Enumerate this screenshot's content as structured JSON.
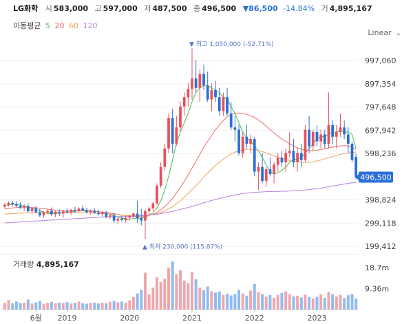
{
  "header": {
    "name": "LG화학",
    "open_label": "시",
    "open": "583,000",
    "high_label": "고",
    "high": "597,000",
    "low_label": "저",
    "low": "487,500",
    "close_label": "종",
    "close": "496,500",
    "change": "▼86,500",
    "change_pct": "-14.84%",
    "volume_label": "거",
    "volume": "4,895,167"
  },
  "ma_legend": {
    "label": "이동평균",
    "periods": [
      "5",
      "20",
      "60",
      "120"
    ]
  },
  "scale_select": {
    "value": "Linear"
  },
  "colors": {
    "up": "#e8505b",
    "down": "#2a6fd6",
    "ma5": "#4cbb4c",
    "ma20": "#ee6a6a",
    "ma60": "#f2a25a",
    "ma120": "#b77fd6",
    "vol_up": "#f0a6ac",
    "vol_down": "#8fbbf0",
    "grid": "#eeeeee",
    "price_tag": "#2a6fd6"
  },
  "chart_data": {
    "type": "candlestick",
    "title": "",
    "ylim": [
      170000,
      1080000
    ],
    "y_ticks": [
      997060,
      897354,
      797648,
      697942,
      598236,
      398824,
      299118,
      199412
    ],
    "y_tick_labels": [
      "997,060",
      "897,354",
      "797,648",
      "697,942",
      "598,236",
      "398,824",
      "299,118",
      "199,412"
    ],
    "current_price": 496500,
    "current_price_label": "496,500",
    "x_labels": [
      "6월",
      "2019",
      "2020",
      "2021",
      "2022",
      "2023"
    ],
    "x_label_index": [
      8,
      16,
      32,
      48,
      64,
      80
    ],
    "n_periods": 91,
    "candles": [
      [
        370000,
        385000,
        362000,
        378000
      ],
      [
        378000,
        392000,
        370000,
        386000
      ],
      [
        386000,
        395000,
        374000,
        380000
      ],
      [
        380000,
        392000,
        368000,
        374000
      ],
      [
        374000,
        388000,
        360000,
        366000
      ],
      [
        366000,
        380000,
        352000,
        372000
      ],
      [
        372000,
        384000,
        345000,
        350000
      ],
      [
        350000,
        365000,
        338000,
        362000
      ],
      [
        362000,
        372000,
        340000,
        346000
      ],
      [
        346000,
        360000,
        325000,
        332000
      ],
      [
        332000,
        350000,
        322000,
        345000
      ],
      [
        345000,
        360000,
        338000,
        352000
      ],
      [
        352000,
        366000,
        330000,
        338000
      ],
      [
        338000,
        352000,
        325000,
        347000
      ],
      [
        347000,
        358000,
        330000,
        340000
      ],
      [
        340000,
        356000,
        322000,
        350000
      ],
      [
        350000,
        362000,
        340000,
        345000
      ],
      [
        345000,
        360000,
        335000,
        356000
      ],
      [
        356000,
        368000,
        342000,
        350000
      ],
      [
        350000,
        368000,
        346000,
        362000
      ],
      [
        362000,
        376000,
        350000,
        354000
      ],
      [
        354000,
        365000,
        340000,
        346000
      ],
      [
        346000,
        358000,
        336000,
        352000
      ],
      [
        352000,
        362000,
        338000,
        344000
      ],
      [
        344000,
        356000,
        332000,
        338000
      ],
      [
        338000,
        350000,
        326000,
        344000
      ],
      [
        344000,
        352000,
        320000,
        326000
      ],
      [
        326000,
        340000,
        316000,
        332000
      ],
      [
        332000,
        342000,
        300000,
        310000
      ],
      [
        310000,
        325000,
        296000,
        318000
      ],
      [
        318000,
        332000,
        305000,
        312000
      ],
      [
        312000,
        328000,
        302000,
        322000
      ],
      [
        322000,
        336000,
        310000,
        328000
      ],
      [
        328000,
        345000,
        318000,
        340000
      ],
      [
        340000,
        395000,
        300000,
        320000
      ],
      [
        320000,
        360000,
        290000,
        310000
      ],
      [
        310000,
        360000,
        230000,
        350000
      ],
      [
        350000,
        372000,
        332000,
        362000
      ],
      [
        362000,
        390000,
        350000,
        384000
      ],
      [
        384000,
        470000,
        376000,
        460000
      ],
      [
        460000,
        560000,
        450000,
        540000
      ],
      [
        540000,
        640000,
        525000,
        620000
      ],
      [
        620000,
        770000,
        600000,
        750000
      ],
      [
        750000,
        790000,
        600000,
        640000
      ],
      [
        640000,
        760000,
        630000,
        710000
      ],
      [
        710000,
        820000,
        690000,
        800000
      ],
      [
        800000,
        860000,
        760000,
        840000
      ],
      [
        840000,
        900000,
        800000,
        875000
      ],
      [
        875000,
        1050000,
        830000,
        920000
      ],
      [
        920000,
        1000000,
        860000,
        880000
      ],
      [
        880000,
        960000,
        820000,
        940000
      ],
      [
        940000,
        980000,
        870000,
        890000
      ],
      [
        890000,
        950000,
        820000,
        830000
      ],
      [
        830000,
        900000,
        780000,
        870000
      ],
      [
        870000,
        910000,
        820000,
        840000
      ],
      [
        840000,
        880000,
        760000,
        780000
      ],
      [
        780000,
        860000,
        760000,
        840000
      ],
      [
        840000,
        880000,
        760000,
        770000
      ],
      [
        770000,
        820000,
        700000,
        710000
      ],
      [
        710000,
        760000,
        650000,
        700000
      ],
      [
        700000,
        720000,
        590000,
        600000
      ],
      [
        600000,
        690000,
        580000,
        670000
      ],
      [
        670000,
        720000,
        620000,
        640000
      ],
      [
        640000,
        680000,
        600000,
        660000
      ],
      [
        660000,
        670000,
        500000,
        520000
      ],
      [
        520000,
        560000,
        440000,
        540000
      ],
      [
        540000,
        600000,
        470000,
        480000
      ],
      [
        480000,
        540000,
        455000,
        530000
      ],
      [
        530000,
        580000,
        500000,
        510000
      ],
      [
        510000,
        560000,
        470000,
        550000
      ],
      [
        550000,
        600000,
        520000,
        580000
      ],
      [
        580000,
        610000,
        540000,
        560000
      ],
      [
        560000,
        620000,
        520000,
        600000
      ],
      [
        600000,
        690000,
        580000,
        610000
      ],
      [
        610000,
        660000,
        540000,
        560000
      ],
      [
        560000,
        620000,
        520000,
        600000
      ],
      [
        600000,
        640000,
        540000,
        570000
      ],
      [
        570000,
        720000,
        560000,
        700000
      ],
      [
        700000,
        760000,
        600000,
        630000
      ],
      [
        630000,
        700000,
        610000,
        690000
      ],
      [
        690000,
        720000,
        630000,
        650000
      ],
      [
        650000,
        700000,
        620000,
        680000
      ],
      [
        680000,
        700000,
        620000,
        640000
      ],
      [
        640000,
        860000,
        620000,
        720000
      ],
      [
        720000,
        740000,
        640000,
        670000
      ],
      [
        670000,
        720000,
        620000,
        690000
      ],
      [
        690000,
        770000,
        670000,
        710000
      ],
      [
        710000,
        740000,
        660000,
        680000
      ],
      [
        680000,
        710000,
        600000,
        640000
      ],
      [
        640000,
        650000,
        560000,
        570000
      ],
      [
        583000,
        597000,
        487500,
        496500
      ]
    ],
    "annotations": {
      "high": {
        "label": "최고",
        "value": "1,050,000",
        "pct": "(-52.71%)",
        "index": 48
      },
      "low": {
        "label": "최저",
        "value": "230,000",
        "pct": "(115.87%)",
        "index": 36
      }
    },
    "series": [
      {
        "name": "5",
        "values": [
          372000,
          378000,
          381000,
          380000,
          377000,
          373000,
          368000,
          364000,
          360000,
          352000,
          346000,
          341000,
          338000,
          340000,
          343000,
          342000,
          344000,
          347000,
          350000,
          353000,
          354000,
          354000,
          352000,
          350000,
          349000,
          345000,
          341000,
          337000,
          331000,
          325000,
          320000,
          318000,
          315000,
          320000,
          320000,
          320000,
          325000,
          333000,
          343000,
          364000,
          394000,
          440000,
          500000,
          570000,
          640000,
          690000,
          730000,
          770000,
          820000,
          860000,
          880000,
          890000,
          890000,
          880000,
          870000,
          860000,
          840000,
          830000,
          800000,
          770000,
          730000,
          690000,
          665000,
          650000,
          630000,
          610000,
          580000,
          550000,
          520000,
          510000,
          515000,
          525000,
          540000,
          560000,
          570000,
          575000,
          580000,
          600000,
          620000,
          640000,
          660000,
          670000,
          672000,
          680000,
          690000,
          690000,
          695000,
          690000,
          690000,
          680000,
          620000
        ]
      },
      {
        "name": "20",
        "values": [
          360000,
          362000,
          364000,
          366000,
          367000,
          368000,
          367000,
          366000,
          365000,
          363000,
          361000,
          359000,
          357000,
          355000,
          354000,
          353000,
          352000,
          352000,
          352000,
          352000,
          352000,
          351000,
          350000,
          349000,
          348000,
          346000,
          344000,
          342000,
          339000,
          336000,
          333000,
          331000,
          329000,
          328000,
          327000,
          326000,
          328000,
          332000,
          337000,
          345000,
          356000,
          370000,
          386000,
          405000,
          428000,
          453000,
          478000,
          505000,
          535000,
          565000,
          595000,
          625000,
          650000,
          675000,
          700000,
          720000,
          740000,
          755000,
          765000,
          770000,
          772000,
          770000,
          766000,
          760000,
          752000,
          742000,
          730000,
          715000,
          700000,
          686000,
          672000,
          660000,
          650000,
          640000,
          630000,
          622000,
          616000,
          612000,
          610000,
          610000,
          612000,
          615000,
          618000,
          622000,
          625000,
          628000,
          630000,
          632000,
          630000,
          625000,
          615000
        ]
      },
      {
        "name": "60",
        "values": [
          338000,
          339000,
          340000,
          341000,
          342000,
          342000,
          343000,
          343000,
          344000,
          344000,
          344000,
          344000,
          344000,
          344000,
          344000,
          344000,
          344000,
          344000,
          344000,
          344000,
          344000,
          343000,
          343000,
          342000,
          341000,
          340000,
          339000,
          338000,
          336000,
          335000,
          333000,
          332000,
          331000,
          330000,
          330000,
          330000,
          331000,
          333000,
          336000,
          340000,
          345000,
          352000,
          360000,
          370000,
          382000,
          395000,
          410000,
          426000,
          443000,
          460000,
          478000,
          496000,
          514000,
          530000,
          546000,
          560000,
          574000,
          586000,
          596000,
          604000,
          610000,
          614000,
          616000,
          616000,
          614000,
          611000,
          606000,
          600000,
          594000,
          588000,
          582000,
          577000,
          572000,
          568000,
          565000,
          562000,
          560000,
          560000,
          560000,
          562000,
          566000,
          570000,
          575000,
          580000,
          585000,
          590000,
          594000,
          598000,
          600000,
          602000,
          604000
        ]
      },
      {
        "name": "120",
        "values": [
          300000,
          301000,
          302000,
          303000,
          304000,
          305000,
          306000,
          307000,
          308000,
          309000,
          310000,
          311000,
          312000,
          313000,
          314000,
          315000,
          316000,
          317000,
          318000,
          319000,
          320000,
          321000,
          322000,
          323000,
          324000,
          325000,
          325000,
          326000,
          326000,
          327000,
          327000,
          328000,
          328000,
          329000,
          330000,
          331000,
          332000,
          333000,
          335000,
          337000,
          340000,
          343000,
          346000,
          350000,
          354000,
          358000,
          362000,
          366000,
          371000,
          376000,
          381000,
          386000,
          391000,
          396000,
          401000,
          405000,
          409000,
          413000,
          417000,
          420000,
          423000,
          426000,
          428000,
          430000,
          431000,
          432000,
          433000,
          434000,
          434000,
          435000,
          435000,
          436000,
          436000,
          437000,
          438000,
          439000,
          440000,
          441000,
          443000,
          445000,
          447000,
          449000,
          452000,
          455000,
          458000,
          461000,
          464000,
          467000,
          470000,
          472000,
          474000
        ]
      }
    ],
    "volume": {
      "label": "거래량",
      "last_value": "4,895,167",
      "ylim": [
        0,
        24000000
      ],
      "ticks": [
        18700000,
        9360000
      ],
      "tick_labels": [
        "18.7m",
        "9.36m"
      ],
      "values": [
        3000000,
        4200000,
        2800000,
        3600000,
        2900000,
        3100000,
        4500000,
        2700000,
        3200000,
        3800000,
        2600000,
        3000000,
        3400000,
        2800000,
        3100000,
        2900000,
        3300000,
        2700000,
        3000000,
        3600000,
        2800000,
        2600000,
        2900000,
        3100000,
        2700000,
        3000000,
        2800000,
        3500000,
        3900000,
        3200000,
        3600000,
        3000000,
        4100000,
        5600000,
        7200000,
        8800000,
        16500000,
        6800000,
        9800000,
        14500000,
        12300000,
        13800000,
        18700000,
        21500000,
        15800000,
        17600000,
        13000000,
        11800000,
        16800000,
        13500000,
        9800000,
        8600000,
        10300000,
        8200000,
        7600000,
        8100000,
        6500000,
        7100000,
        6300000,
        6900000,
        8800000,
        7200000,
        6200000,
        8500000,
        11500000,
        7800000,
        6900000,
        5800000,
        6500000,
        5300000,
        6600000,
        7400000,
        8100000,
        6800000,
        5900000,
        6200000,
        5400000,
        6700000,
        5600000,
        4900000,
        5700000,
        6800000,
        5200000,
        7900000,
        6900000,
        5800000,
        6600000,
        5100000,
        6400000,
        7000000,
        4895167
      ]
    }
  }
}
